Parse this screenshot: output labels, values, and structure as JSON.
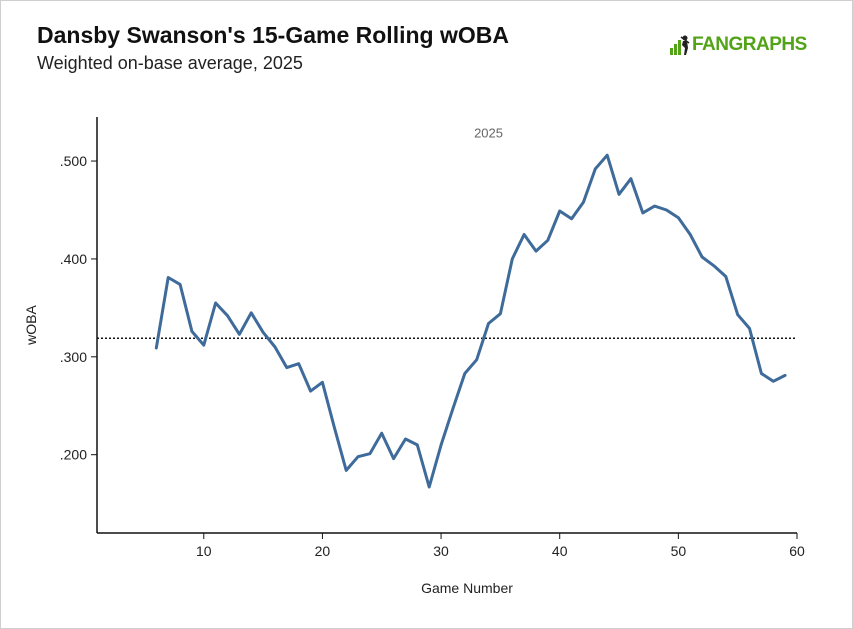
{
  "header": {
    "title": "Dansby Swanson's 15-Game Rolling wOBA",
    "subtitle": "Weighted on-base average, 2025",
    "logo_text": "FANGRAPHS"
  },
  "colors": {
    "line": "#3e6b9a",
    "axis": "#111111",
    "logo": "#53a318"
  },
  "chart_data": {
    "type": "line",
    "xlabel": "Game Number",
    "ylabel": "wOBA",
    "xlim": [
      1,
      60
    ],
    "ylim": [
      0.12,
      0.545
    ],
    "xticks": [
      10,
      20,
      30,
      40,
      50,
      60
    ],
    "yticks": [
      0.2,
      0.3,
      0.4,
      0.5
    ],
    "ytick_labels": [
      ".200",
      ".300",
      ".400",
      ".500"
    ],
    "grid": false,
    "annotations": [
      {
        "text": "2025",
        "x": 34,
        "y": 0.524
      }
    ],
    "reference_line": {
      "y": 0.319,
      "style": "dotted"
    },
    "series": [
      {
        "x": [
          6,
          7,
          8,
          9,
          10,
          11,
          12,
          13,
          14,
          15,
          16,
          17,
          18,
          19,
          20,
          21,
          22,
          23,
          24,
          25,
          26,
          27,
          28,
          29,
          30,
          31,
          32,
          33,
          34,
          35,
          36,
          37,
          38,
          39,
          40,
          41,
          42,
          43,
          44,
          45,
          46,
          47,
          48,
          49,
          50,
          51,
          52,
          53,
          54,
          55,
          56,
          57,
          58,
          59
        ],
        "y": [
          0.309,
          0.381,
          0.374,
          0.326,
          0.312,
          0.355,
          0.342,
          0.323,
          0.345,
          0.325,
          0.31,
          0.289,
          0.293,
          0.265,
          0.274,
          0.228,
          0.184,
          0.198,
          0.201,
          0.222,
          0.196,
          0.216,
          0.21,
          0.167,
          0.21,
          0.247,
          0.283,
          0.297,
          0.334,
          0.344,
          0.4,
          0.425,
          0.408,
          0.419,
          0.449,
          0.441,
          0.458,
          0.492,
          0.506,
          0.466,
          0.482,
          0.447,
          0.454,
          0.45,
          0.442,
          0.425,
          0.402,
          0.393,
          0.382,
          0.343,
          0.329,
          0.283,
          0.275,
          0.281
        ]
      }
    ]
  }
}
